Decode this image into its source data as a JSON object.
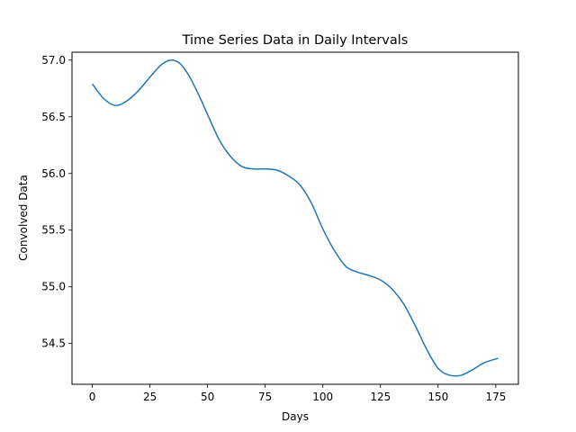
{
  "chart_data": {
    "type": "line",
    "title": "Time Series Data in Daily Intervals",
    "xlabel": "Days",
    "ylabel": "Convolved Data",
    "xlim": [
      -8.8,
      184.8
    ],
    "ylim": [
      54.14,
      57.07
    ],
    "xticks": [
      0,
      25,
      50,
      75,
      100,
      125,
      150,
      175
    ],
    "xtick_labels": [
      "0",
      "25",
      "50",
      "75",
      "100",
      "125",
      "150",
      "175"
    ],
    "yticks": [
      54.5,
      55.0,
      55.5,
      56.0,
      56.5,
      57.0
    ],
    "ytick_labels": [
      "54.5",
      "55.0",
      "55.5",
      "56.0",
      "56.5",
      "57.0"
    ],
    "grid": false,
    "legend": "none",
    "line_color": "#1f77b4",
    "series": [
      {
        "x": [
          0,
          5,
          10,
          15,
          20,
          25,
          30,
          34,
          38,
          42,
          46,
          50,
          55,
          60,
          65,
          70,
          75,
          80,
          85,
          90,
          95,
          100,
          105,
          110,
          115,
          120,
          125,
          130,
          135,
          140,
          145,
          150,
          155,
          160,
          165,
          170,
          176
        ],
        "values": [
          56.79,
          56.66,
          56.6,
          56.64,
          56.73,
          56.85,
          56.96,
          57.0,
          56.97,
          56.86,
          56.7,
          56.52,
          56.3,
          56.15,
          56.06,
          56.04,
          56.04,
          56.03,
          55.98,
          55.9,
          55.74,
          55.51,
          55.32,
          55.18,
          55.13,
          55.1,
          55.06,
          54.98,
          54.85,
          54.66,
          54.45,
          54.28,
          54.22,
          54.22,
          54.27,
          54.33,
          54.37
        ]
      }
    ]
  }
}
